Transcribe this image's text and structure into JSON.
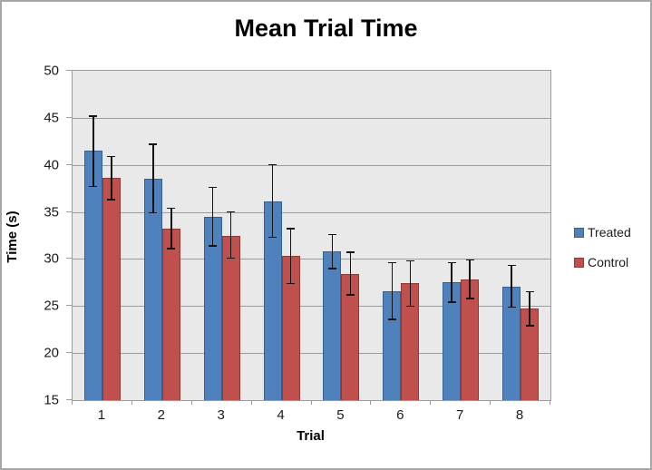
{
  "chart_data": {
    "type": "bar",
    "title": "Mean Trial Time",
    "xlabel": "Trial",
    "ylabel": "Time (s)",
    "categories": [
      "1",
      "2",
      "3",
      "4",
      "5",
      "6",
      "7",
      "8"
    ],
    "ylim": [
      15,
      50
    ],
    "ytick_step": 5,
    "yticks": [
      15,
      20,
      25,
      30,
      35,
      40,
      45,
      50
    ],
    "grid": true,
    "legend_position": "right",
    "plot_background": "#e9e9e9",
    "gridline_color": "#9c9c9c",
    "error_bar_color": "#141414",
    "series": [
      {
        "name": "Treated",
        "color": "#4f81bd",
        "border_color": "#36608f",
        "values": [
          41.5,
          38.5,
          34.5,
          36.1,
          30.8,
          26.6,
          27.5,
          27.1
        ],
        "error_upper": [
          45.2,
          42.2,
          37.6,
          40.0,
          32.6,
          29.6,
          29.6,
          29.3
        ],
        "error_lower": [
          37.7,
          34.9,
          31.4,
          32.3,
          29.0,
          23.6,
          25.4,
          24.9
        ]
      },
      {
        "name": "Control",
        "color": "#c0504d",
        "border_color": "#8e3a37",
        "values": [
          38.6,
          33.2,
          32.5,
          30.3,
          28.4,
          27.4,
          27.8,
          24.7
        ],
        "error_upper": [
          40.9,
          35.4,
          35.0,
          33.2,
          30.7,
          29.8,
          29.9,
          26.5
        ],
        "error_lower": [
          36.3,
          31.1,
          30.1,
          27.4,
          26.2,
          25.0,
          25.8,
          22.9
        ]
      }
    ]
  }
}
